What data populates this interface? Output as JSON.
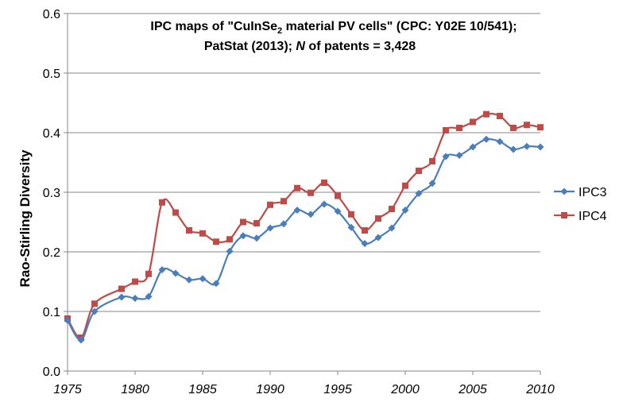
{
  "chart_data": {
    "type": "line",
    "title_line1_pre": "IPC maps of \"CuInSe",
    "title_line1_sub": "2",
    "title_line1_post": " material PV cells\" (CPC: Y02E 10/541);",
    "title_line2_pre": "PatStat (2013); ",
    "title_line2_italic": "N",
    "title_line2_post": " of patents = 3,428",
    "xlabel": "",
    "ylabel": "Rao-Stirling Diversity",
    "xlim": [
      1975,
      2010
    ],
    "ylim": [
      0.0,
      0.6
    ],
    "x_ticks": [
      "1975",
      "1980",
      "1985",
      "1990",
      "1995",
      "2000",
      "2005",
      "2010"
    ],
    "y_ticks": [
      "0.0",
      "0.1",
      "0.2",
      "0.3",
      "0.4",
      "0.5",
      "0.6"
    ],
    "grid": "horizontal",
    "legend_position": "right",
    "series": [
      {
        "name": "IPC3",
        "color": "#4a7ebb",
        "marker": "diamond",
        "x": [
          1975,
          1976,
          1977,
          1979,
          1980,
          1981,
          1982,
          1983,
          1984,
          1985,
          1986,
          1987,
          1988,
          1989,
          1990,
          1991,
          1992,
          1993,
          1994,
          1995,
          1996,
          1997,
          1998,
          1999,
          2000,
          2001,
          2002,
          2003,
          2004,
          2005,
          2006,
          2007,
          2008,
          2009,
          2010
        ],
        "values": [
          0.085,
          0.052,
          0.1,
          0.124,
          0.122,
          0.125,
          0.17,
          0.164,
          0.153,
          0.155,
          0.147,
          0.201,
          0.227,
          0.223,
          0.24,
          0.247,
          0.27,
          0.263,
          0.28,
          0.268,
          0.241,
          0.214,
          0.224,
          0.24,
          0.27,
          0.298,
          0.315,
          0.36,
          0.362,
          0.376,
          0.389,
          0.385,
          0.372,
          0.377,
          0.376
        ]
      },
      {
        "name": "IPC4",
        "color": "#be4b48",
        "marker": "square",
        "x": [
          1975,
          1976,
          1977,
          1979,
          1980,
          1981,
          1982,
          1983,
          1984,
          1985,
          1986,
          1987,
          1988,
          1989,
          1990,
          1991,
          1992,
          1993,
          1994,
          1995,
          1996,
          1997,
          1998,
          1999,
          2000,
          2001,
          2002,
          2003,
          2004,
          2005,
          2006,
          2007,
          2008,
          2009,
          2010
        ],
        "values": [
          0.088,
          0.056,
          0.113,
          0.138,
          0.15,
          0.163,
          0.283,
          0.266,
          0.236,
          0.231,
          0.217,
          0.221,
          0.25,
          0.248,
          0.279,
          0.285,
          0.307,
          0.299,
          0.316,
          0.294,
          0.263,
          0.236,
          0.256,
          0.272,
          0.311,
          0.336,
          0.352,
          0.404,
          0.408,
          0.418,
          0.431,
          0.428,
          0.408,
          0.413,
          0.409
        ]
      }
    ]
  }
}
